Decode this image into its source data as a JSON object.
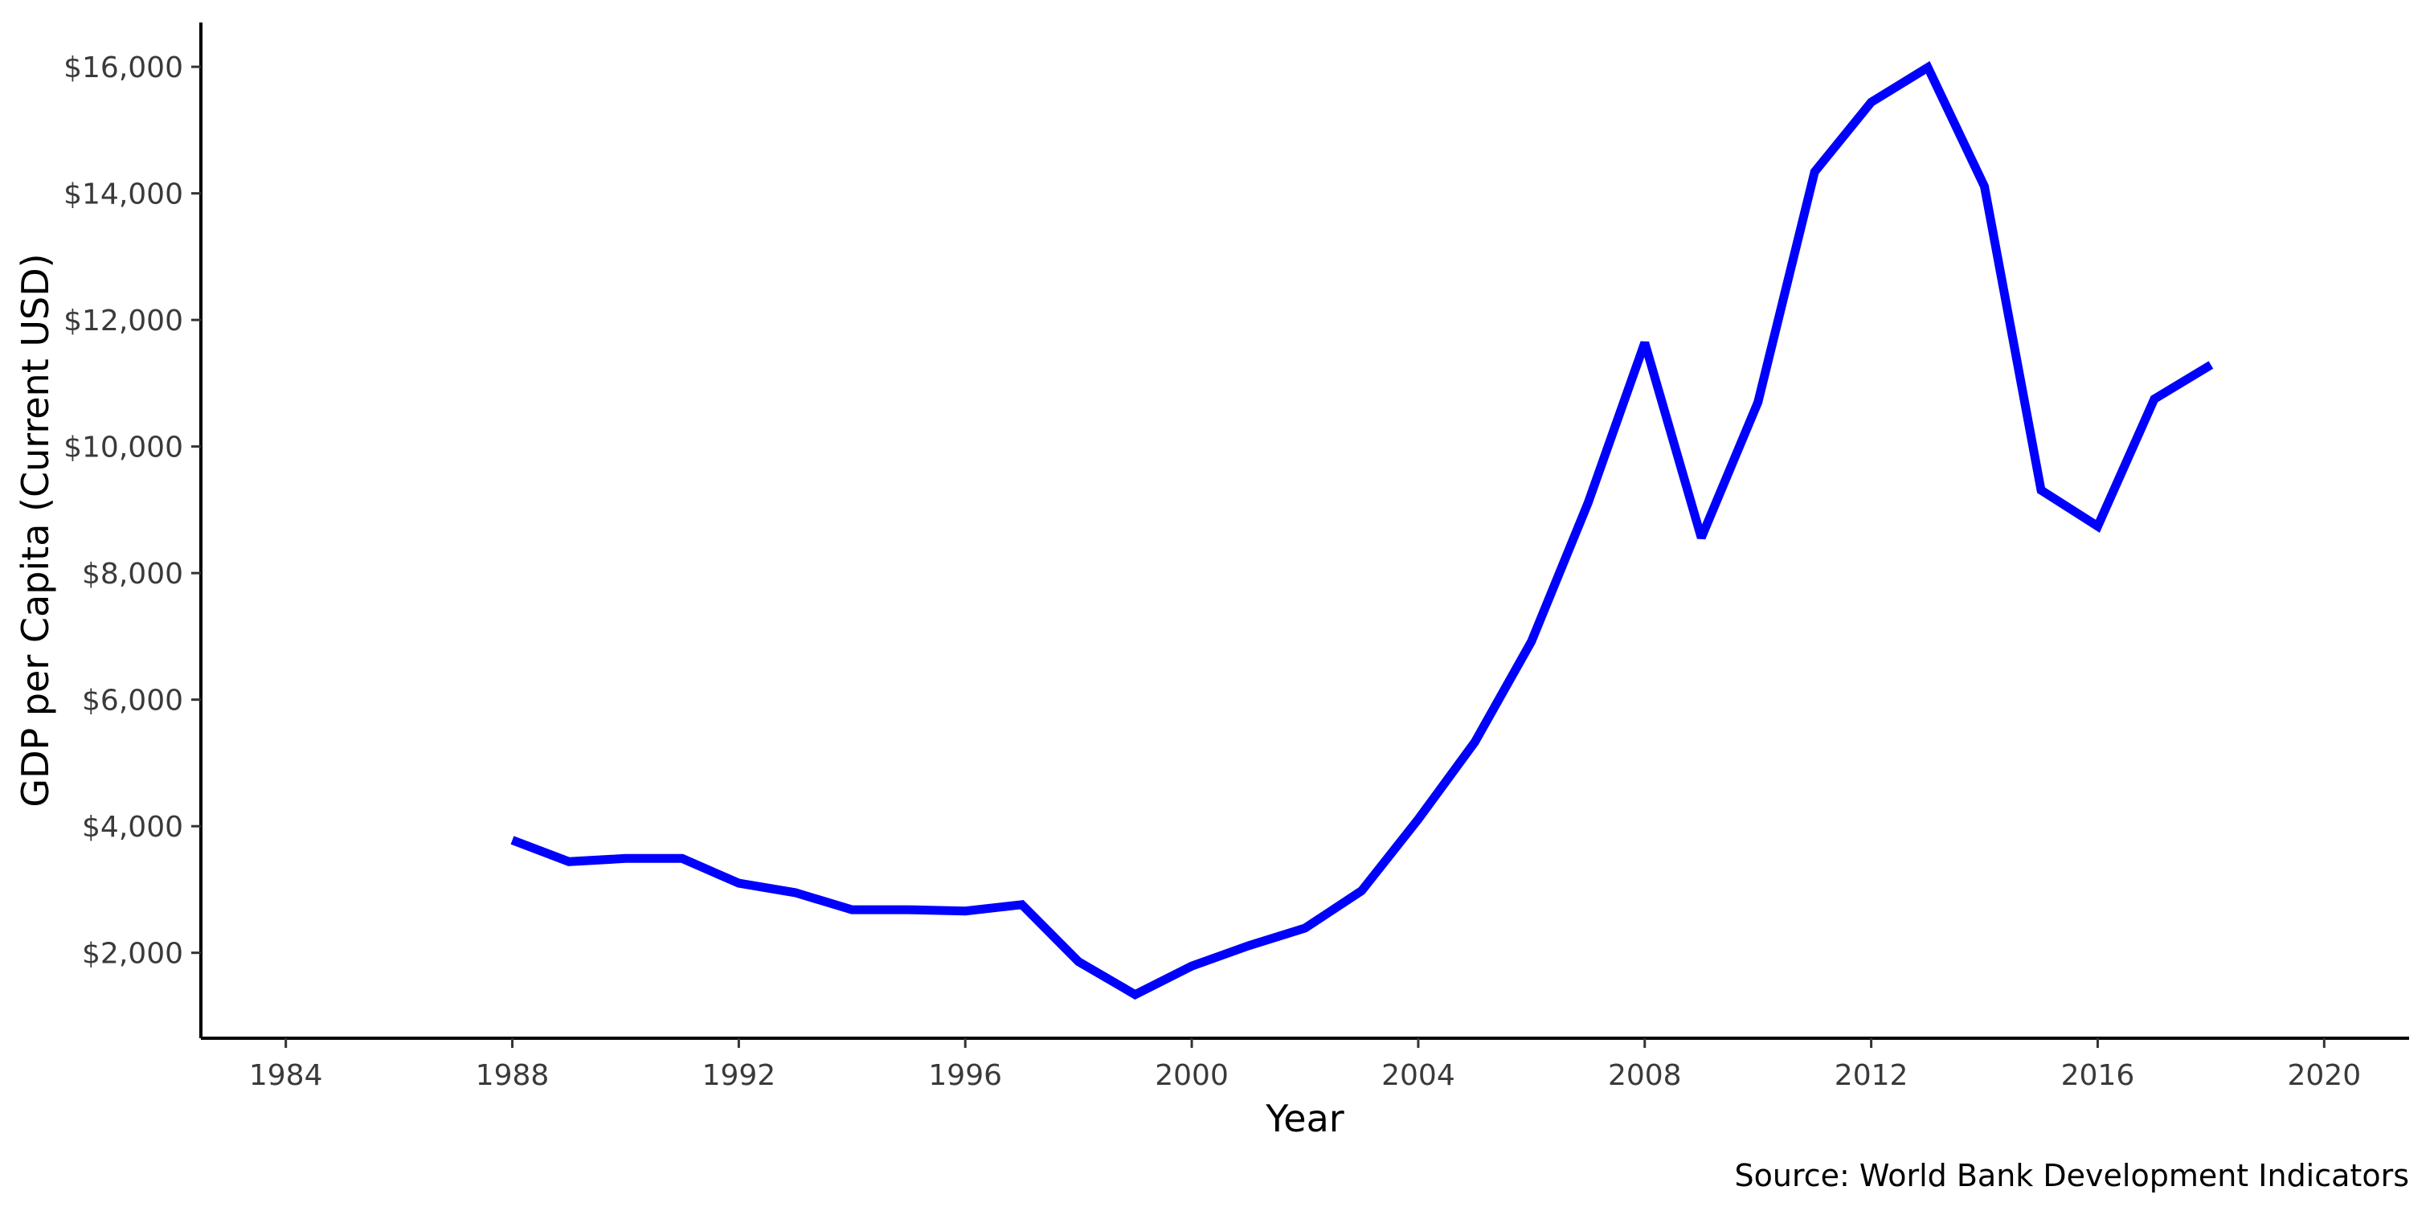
{
  "chart_data": {
    "type": "line",
    "title": "",
    "xlabel": "Year",
    "ylabel": "GDP per Capita (Current USD)",
    "caption": "Source: World Bank Development Indicators",
    "xlim": [
      1982.5,
      2021.5
    ],
    "ylim": [
      650,
      16700
    ],
    "xticks": [
      1984,
      1988,
      1992,
      1996,
      2000,
      2004,
      2008,
      2012,
      2016,
      2020
    ],
    "xtick_labels": [
      "1984",
      "1988",
      "1992",
      "1996",
      "2000",
      "2004",
      "2008",
      "2012",
      "2016",
      "2020"
    ],
    "yticks": [
      2000,
      4000,
      6000,
      8000,
      10000,
      12000,
      14000,
      16000
    ],
    "ytick_labels": [
      "$2,000",
      "$4,000",
      "$6,000",
      "$8,000",
      "$10,000",
      "$12,000",
      "$14,000",
      "$16,000"
    ],
    "grid": false,
    "legend": "none",
    "series": [
      {
        "color": "#0000ff",
        "x": [
          1988,
          1989,
          1990,
          1991,
          1992,
          1993,
          1994,
          1995,
          1996,
          1997,
          1998,
          1999,
          2000,
          2001,
          2002,
          2003,
          2004,
          2005,
          2006,
          2007,
          2008,
          2009,
          2010,
          2011,
          2012,
          2013,
          2014,
          2015,
          2016,
          2017,
          2018
        ],
        "y": [
          3780,
          3440,
          3490,
          3490,
          3100,
          2950,
          2680,
          2680,
          2660,
          2760,
          1860,
          1340,
          1790,
          2110,
          2390,
          2980,
          4110,
          5330,
          6920,
          9110,
          11640,
          8560,
          10700,
          14340,
          15440,
          15990,
          14110,
          9310,
          8740,
          10750,
          11290
        ]
      }
    ]
  }
}
